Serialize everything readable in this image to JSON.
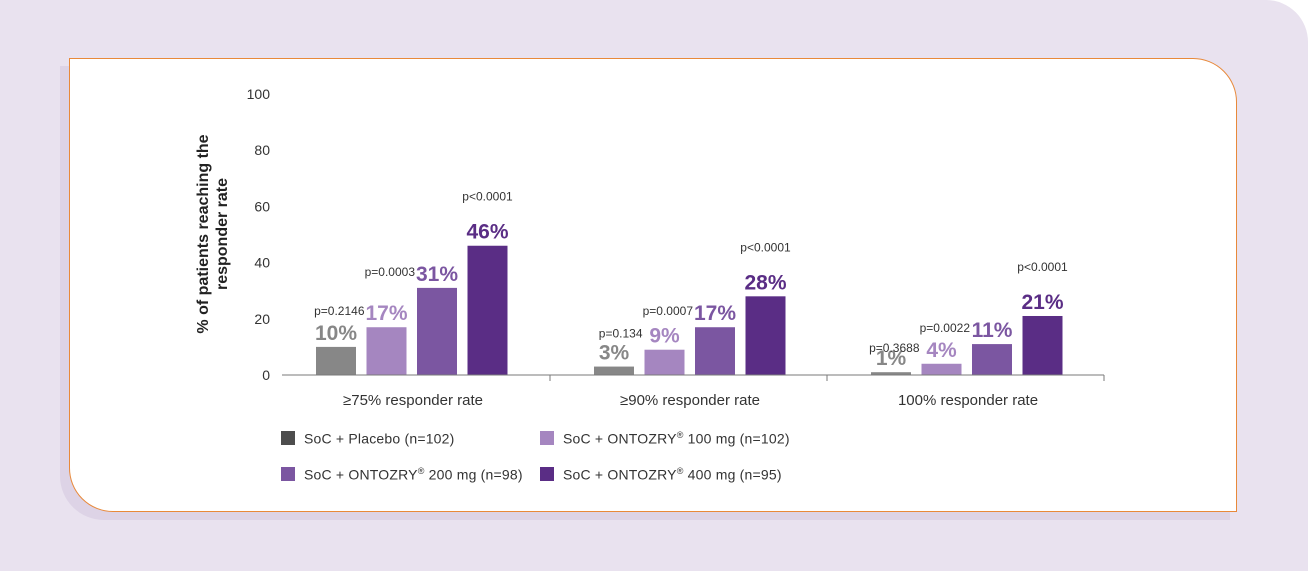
{
  "chart_data": {
    "type": "bar",
    "ylabel": "% of patients reaching the responder rate",
    "ylim": [
      0,
      100
    ],
    "yticks": [
      "0",
      "20",
      "40",
      "60",
      "80",
      "100"
    ],
    "grid": false,
    "legend_placement": "bottom",
    "categories": [
      "≥75% responder rate",
      "≥90% responder rate",
      "100% responder rate"
    ],
    "series": [
      {
        "name": "SoC + Placebo (n=102)",
        "color": "#878787",
        "values": [
          10,
          3,
          1
        ],
        "labels": [
          "10%",
          "3%",
          "1%"
        ],
        "pvalues": [
          "",
          "",
          ""
        ]
      },
      {
        "name": "SoC + ONTOZRY® 100 mg (n=102)",
        "color": "#a586c0",
        "values": [
          17,
          9,
          4
        ],
        "labels": [
          "17%",
          "9%",
          "4%"
        ],
        "pvalues": [
          "p=0.2146",
          "p=0.134",
          "p=0.3688"
        ]
      },
      {
        "name": "SoC + ONTOZRY® 200 mg (n=98)",
        "color": "#7b56a1",
        "values": [
          31,
          17,
          11
        ],
        "labels": [
          "31%",
          "17%",
          "11%"
        ],
        "pvalues": [
          "p=0.0003",
          "p=0.0007",
          "p=0.0022"
        ]
      },
      {
        "name": "SoC + ONTOZRY® 400 mg (n=95)",
        "color": "#5a2d85",
        "values": [
          46,
          28,
          21
        ],
        "labels": [
          "46%",
          "28%",
          "21%"
        ],
        "pvalues": [
          "p<0.0001",
          "p<0.0001",
          "p<0.0001"
        ]
      }
    ],
    "legend_swatch_colors": [
      "#4d4d4d",
      "#a586c0",
      "#7b56a1",
      "#5a2d85"
    ]
  },
  "legend": {
    "items": [
      {
        "text": "SoC + Placebo (n=102)",
        "pre": "SoC + Placebo (n=102)",
        "sup": "",
        "post": ""
      },
      {
        "text": "SoC + ONTOZRY® 100 mg (n=102)",
        "pre": "SoC + ONTOZRY",
        "sup": "®",
        "post": " 100 mg (n=102)"
      },
      {
        "text": "SoC + ONTOZRY® 200 mg (n=98)",
        "pre": "SoC + ONTOZRY",
        "sup": "®",
        "post": " 200 mg (n=98)"
      },
      {
        "text": "SoC + ONTOZRY® 400 mg (n=95)",
        "pre": "SoC + ONTOZRY",
        "sup": "®",
        "post": " 400 mg (n=95)"
      }
    ]
  }
}
